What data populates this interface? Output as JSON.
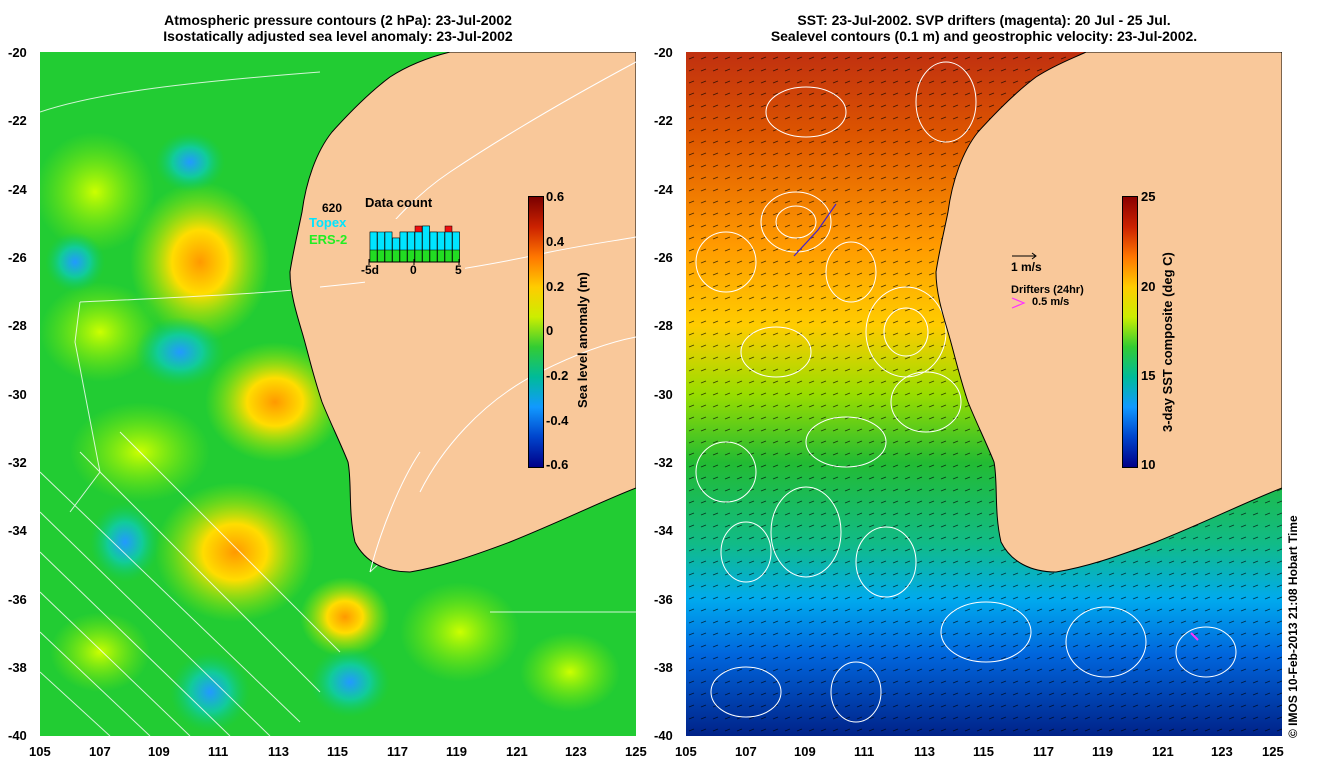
{
  "left_panel": {
    "title_line1": "Atmospheric pressure contours (2 hPa): 23-Jul-2002",
    "title_line2": "Isostatically adjusted sea level anomaly: 23-Jul-2002",
    "colorbar": {
      "title": "Sea level anomaly (m)",
      "ticks": [
        "0.6",
        "0.4",
        "0.2",
        "0",
        "-0.2",
        "-0.4",
        "-0.6"
      ]
    },
    "inset": {
      "title": "Data count",
      "value": "620",
      "legend_topex": "Topex",
      "legend_ers2": "ERS-2",
      "xticks": [
        "-5d",
        "0",
        "5"
      ],
      "bars": [
        {
          "total": 5,
          "topex": 3,
          "ers": 2
        },
        {
          "total": 4,
          "topex": 3,
          "ers": 2
        },
        {
          "total": 5,
          "topex": 3,
          "ers": 2
        },
        {
          "total": 4,
          "topex": 2,
          "ers": 2
        },
        {
          "total": 5,
          "topex": 3,
          "ers": 2
        },
        {
          "total": 5,
          "topex": 3,
          "ers": 2
        },
        {
          "total": 6,
          "topex": 3,
          "ers": 2
        },
        {
          "total": 6,
          "topex": 4,
          "ers": 2
        },
        {
          "total": 5,
          "topex": 3,
          "ers": 2
        },
        {
          "total": 4,
          "topex": 3,
          "ers": 2
        },
        {
          "total": 6,
          "topex": 3,
          "ers": 2
        },
        {
          "total": 5,
          "topex": 3,
          "ers": 2
        }
      ]
    }
  },
  "right_panel": {
    "title_line1": "SST: 23-Jul-2002. SVP drifters (magenta): 20 Jul - 25 Jul.",
    "title_line2": "Sealevel contours (0.1 m) and geostrophic velocity: 23-Jul-2002.",
    "colorbar": {
      "title": "3-day SST composite (deg C)",
      "ticks": [
        "25",
        "20",
        "15",
        "10"
      ]
    },
    "velocity_scale_label": "1 m/s",
    "drifters_label": "Drifters (24hr)",
    "drifter_scale_label": "0.5 m/s"
  },
  "axes": {
    "lat_labels": [
      "-20",
      "-22",
      "-24",
      "-26",
      "-28",
      "-30",
      "-32",
      "-34",
      "-36",
      "-38",
      "-40"
    ],
    "lon_labels": [
      "105",
      "107",
      "109",
      "111",
      "113",
      "115",
      "117",
      "119",
      "121",
      "123",
      "125"
    ]
  },
  "credit": "© IMOS 10-Feb-2013 21:08 Hobart Time",
  "colors": {
    "land": "#f9c89a",
    "ocean_green": "#22cc22",
    "topex": "#00e5ff",
    "ers2": "#22dd22",
    "red": "#ee1111",
    "drifter": "#ff33ff"
  }
}
